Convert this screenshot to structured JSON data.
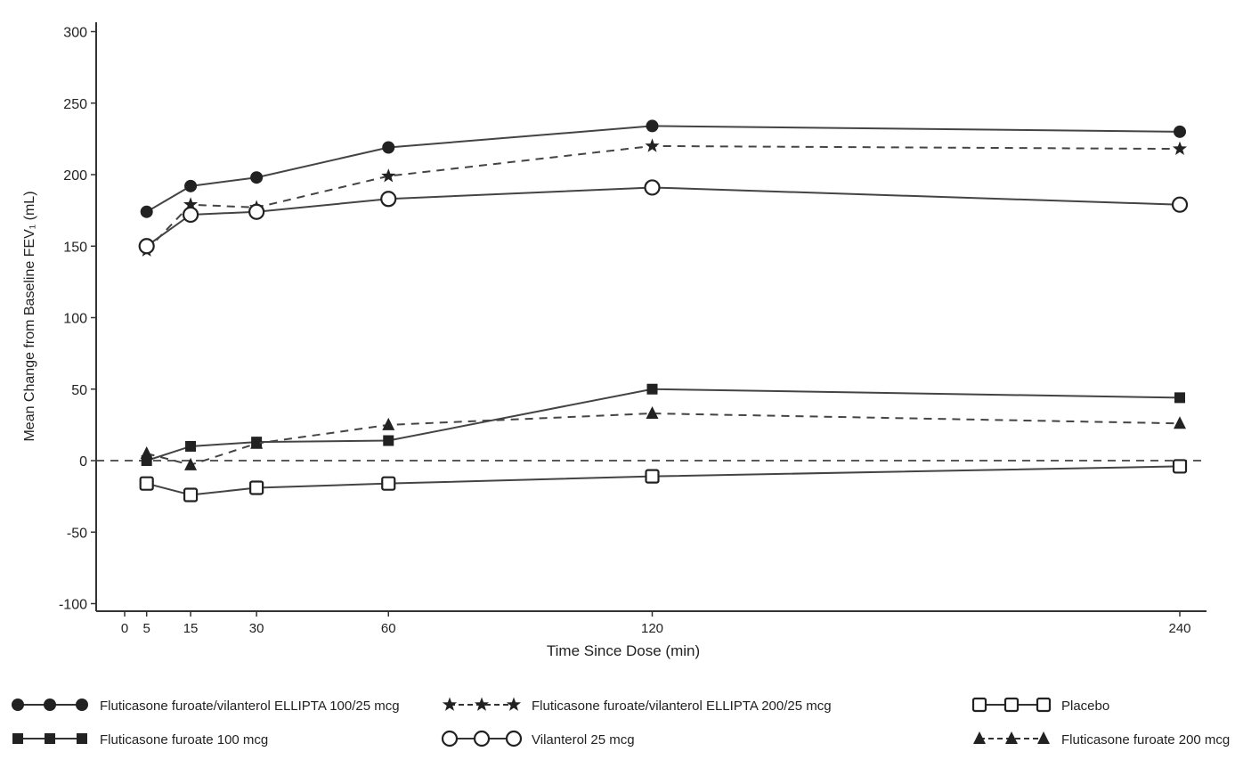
{
  "chart_data": {
    "type": "line",
    "title": "",
    "xlabel": "Time Since Dose (min)",
    "ylabel": "Mean Change from Baseline FEV₁ (mL)",
    "x": [
      5,
      15,
      30,
      60,
      120,
      240
    ],
    "xticks": [
      0,
      5,
      15,
      30,
      60,
      120,
      240
    ],
    "yticks": [
      -100,
      -50,
      0,
      50,
      100,
      150,
      200,
      250,
      300
    ],
    "ylim": [
      -100,
      300
    ],
    "xlim": [
      0,
      240
    ],
    "reference_line": 0,
    "legend_position": "bottom",
    "series": [
      {
        "name": "Fluticasone furoate/vilanterol ELLIPTA 100/25 mcg",
        "marker": "filled-circle",
        "dash": false,
        "values": [
          174,
          192,
          198,
          219,
          234,
          230
        ]
      },
      {
        "name": "Fluticasone furoate/vilanterol ELLIPTA 200/25 mcg",
        "marker": "star",
        "dash": true,
        "values": [
          147,
          179,
          177,
          199,
          220,
          218
        ]
      },
      {
        "name": "Placebo",
        "marker": "open-square",
        "dash": false,
        "values": [
          -16,
          -24,
          -19,
          -16,
          -11,
          -4
        ]
      },
      {
        "name": "Fluticasone furoate 100 mcg",
        "marker": "filled-square",
        "dash": false,
        "values": [
          0,
          10,
          13,
          14,
          50,
          44
        ]
      },
      {
        "name": "Vilanterol 25 mcg",
        "marker": "open-circle",
        "dash": false,
        "values": [
          150,
          172,
          174,
          183,
          191,
          179
        ]
      },
      {
        "name": "Fluticasone furoate 200 mcg",
        "marker": "triangle",
        "dash": true,
        "values": [
          5,
          -3,
          12,
          25,
          33,
          26
        ]
      }
    ]
  }
}
